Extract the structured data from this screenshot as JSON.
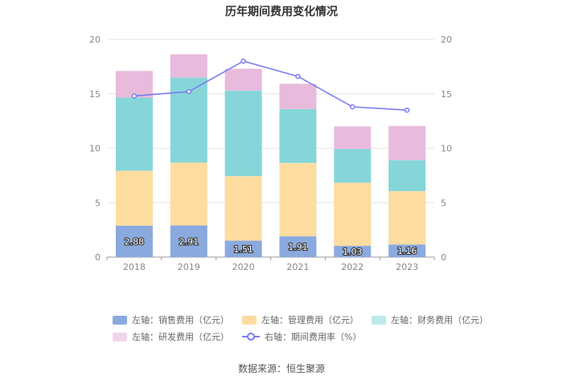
{
  "chart_data": {
    "type": "bar",
    "title": "历年期间费用变化情况",
    "categories": [
      "2018",
      "2019",
      "2020",
      "2021",
      "2022",
      "2023"
    ],
    "stacked": true,
    "ylim_left": [
      0,
      20
    ],
    "ylim_right": [
      0,
      20
    ],
    "yticks_left": [
      "0",
      "5",
      "10",
      "15",
      "20"
    ],
    "yticks_right": [
      "0",
      "5",
      "10",
      "15",
      "20"
    ],
    "series": [
      {
        "name": "左轴：销售费用（亿元）",
        "axis": "left",
        "type": "bar",
        "color": "#8aaadf",
        "values": [
          2.88,
          2.91,
          1.51,
          1.91,
          1.03,
          1.16
        ],
        "labels": [
          "2.88",
          "2.91",
          "1.51",
          "1.91",
          "1.03",
          "1.16"
        ]
      },
      {
        "name": "左轴：管理费用（亿元）",
        "axis": "left",
        "type": "bar",
        "color": "#fddca0",
        "values": [
          5.05,
          5.77,
          5.93,
          6.74,
          5.8,
          4.9
        ]
      },
      {
        "name": "左轴：财务费用（亿元）",
        "axis": "left",
        "type": "bar",
        "color": "#86d6d9",
        "values": [
          6.72,
          7.81,
          7.85,
          4.95,
          3.1,
          2.85
        ]
      },
      {
        "name": "左轴：研发费用（亿元）",
        "axis": "left",
        "type": "bar",
        "color": "#e8bbdc",
        "values": [
          2.45,
          2.14,
          2.01,
          2.32,
          2.07,
          3.14
        ]
      },
      {
        "name": "右轴：期间费用率（%）",
        "axis": "right",
        "type": "line",
        "color": "#7b7cf0",
        "values": [
          14.8,
          15.2,
          18.0,
          16.6,
          13.8,
          13.5
        ]
      }
    ]
  },
  "legend": {
    "sales": "左轴：销售费用（亿元）",
    "admin": "左轴：管理费用（亿元）",
    "finance": "左轴：财务费用（亿元）",
    "rnd": "左轴：研发费用（亿元）",
    "rate": "右轴：期间费用率（%）"
  },
  "source": "数据来源：恒生聚源"
}
